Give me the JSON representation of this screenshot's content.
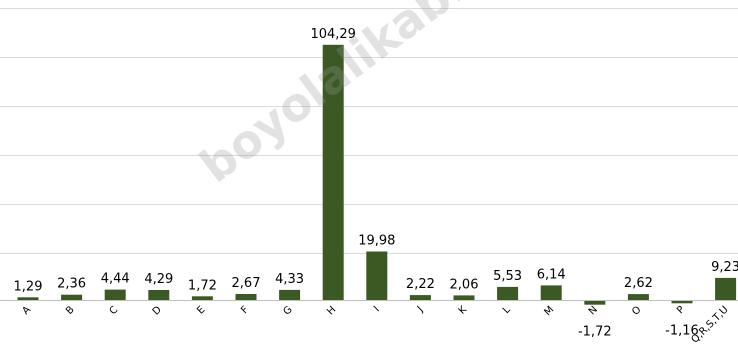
{
  "watermark": "boyolalikab.bps.go.id",
  "colors": {
    "bar": "#3b5a23",
    "grid": "#d9d9d9",
    "axis": "#bfbfbf",
    "text": "#000000"
  },
  "chart_data": {
    "type": "bar",
    "categories": [
      "A",
      "B",
      "C",
      "D",
      "E",
      "F",
      "G",
      "H",
      "I",
      "J",
      "K",
      "L",
      "M",
      "N",
      "O",
      "P",
      "Q,R,S,T,U"
    ],
    "values": [
      1.29,
      2.36,
      4.44,
      4.29,
      1.72,
      2.67,
      4.33,
      104.29,
      19.98,
      2.22,
      2.06,
      5.53,
      6.14,
      -1.72,
      2.62,
      -1.16,
      9.23
    ],
    "value_labels": [
      "1,29",
      "2,36",
      "4,44",
      "4,29",
      "1,72",
      "2,67",
      "4,33",
      "104,29",
      "19,98",
      "2,22",
      "2,06",
      "5,53",
      "6,14",
      "-1,72",
      "2,62",
      "-1,16",
      "9,23"
    ],
    "title": "",
    "xlabel": "",
    "ylabel": "",
    "ylim": [
      -10,
      120
    ],
    "grid": true,
    "legend": "none"
  }
}
